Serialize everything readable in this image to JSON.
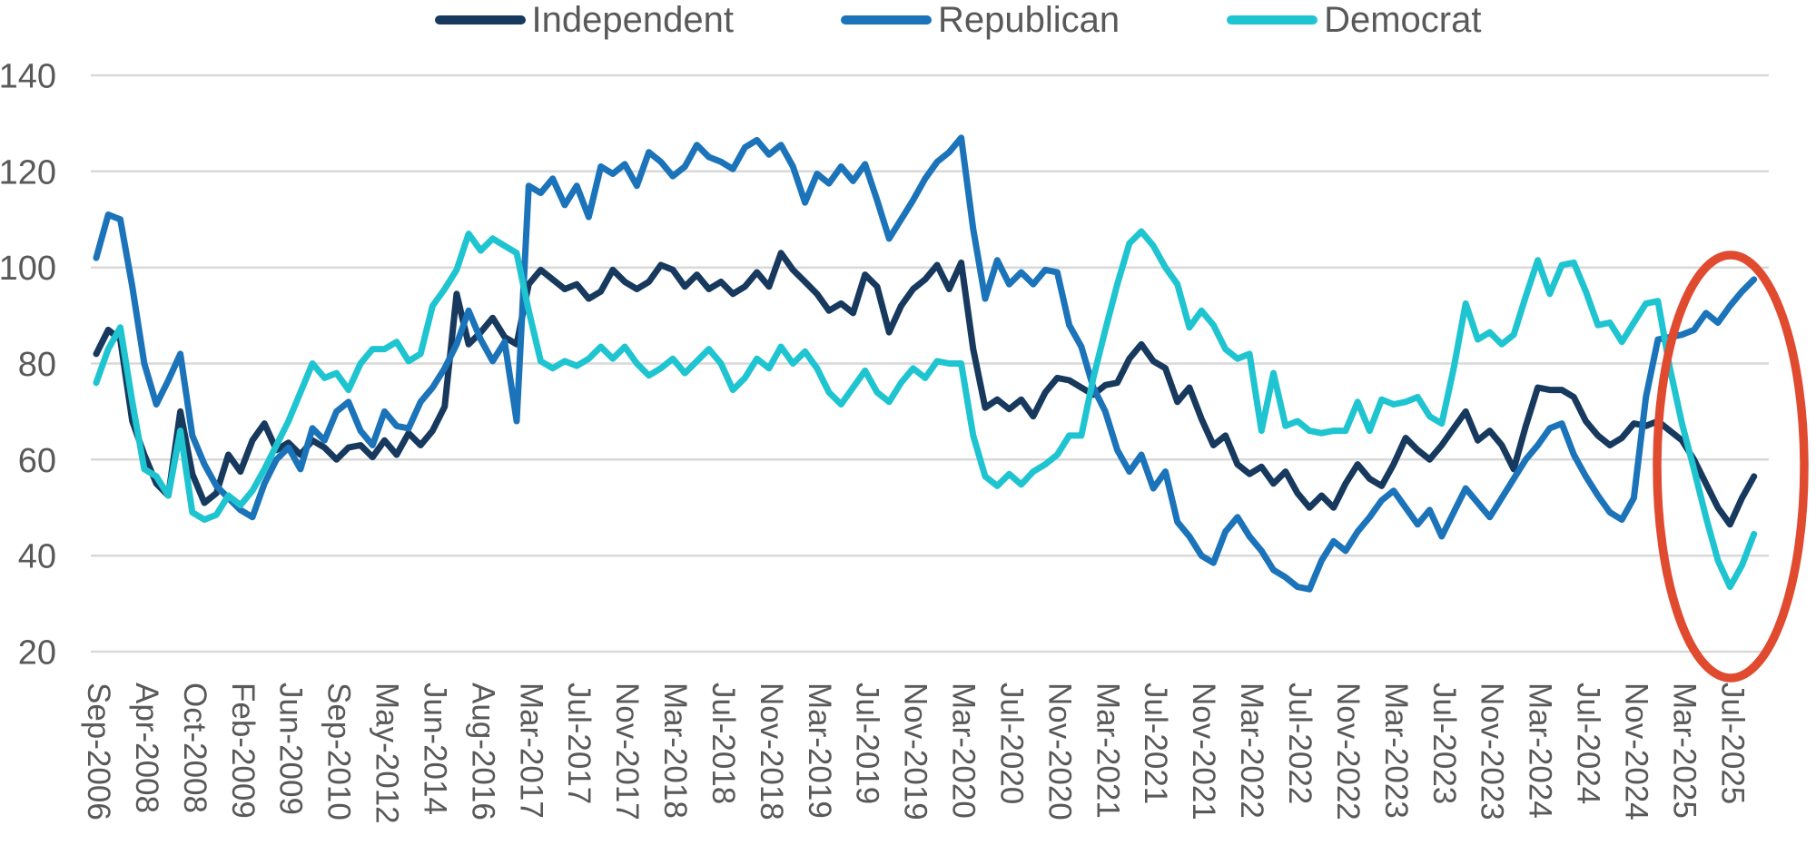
{
  "chart_data": {
    "type": "line",
    "title": "",
    "xlabel": "",
    "ylabel": "",
    "ylim": [
      20,
      140
    ],
    "y_ticks": [
      20,
      40,
      60,
      80,
      100,
      120,
      140
    ],
    "grid": "horizontal",
    "legend_position": "top",
    "n_points": 139,
    "points_per_label_gap": 4,
    "x_labels": [
      "Sep-2006",
      "Apr-2008",
      "Oct-2008",
      "Feb-2009",
      "Jun-2009",
      "Sep-2010",
      "May-2012",
      "Jun-2014",
      "Aug-2016",
      "Mar-2017",
      "Jul-2017",
      "Nov-2017",
      "Mar-2018",
      "Jul-2018",
      "Nov-2018",
      "Mar-2019",
      "Jul-2019",
      "Nov-2019",
      "Mar-2020",
      "Jul-2020",
      "Nov-2020",
      "Mar-2021",
      "Jul-2021",
      "Nov-2021",
      "Mar-2022",
      "Jul-2022",
      "Nov-2022",
      "Mar-2023",
      "Jul-2023",
      "Nov-2023",
      "Mar-2024",
      "Jul-2024",
      "Nov-2024",
      "Mar-2025",
      "Jul-2025"
    ],
    "series": [
      {
        "name": "Independent",
        "color": "#17395E",
        "values": [
          82,
          87,
          85,
          68,
          61,
          55,
          52.5,
          70,
          57,
          51,
          53,
          61,
          57.5,
          64,
          67.5,
          62,
          63.5,
          61,
          64,
          62.5,
          60,
          62.5,
          63,
          60.5,
          64,
          61,
          65.5,
          63,
          66,
          71,
          94.5,
          84,
          86.5,
          89.5,
          85.5,
          84,
          96.5,
          99.5,
          97.5,
          95.5,
          96.5,
          93.5,
          95,
          99.5,
          97,
          95.5,
          97,
          100.5,
          99.5,
          96,
          98.5,
          95.5,
          97,
          94.5,
          96,
          99,
          96,
          103,
          99.5,
          97,
          94.5,
          91,
          92.5,
          90.5,
          98.5,
          96,
          86.5,
          92,
          95.5,
          97.5,
          100.5,
          95.5,
          101,
          83,
          70.8,
          72.5,
          70.5,
          72.5,
          69,
          74,
          77,
          76.5,
          75,
          73.5,
          75.5,
          76,
          81,
          84,
          80.5,
          79,
          72,
          75,
          68.5,
          63,
          65,
          59,
          57,
          58.5,
          55,
          57.5,
          53,
          50,
          52.5,
          50,
          55,
          59,
          56,
          54.5,
          59,
          64.5,
          62,
          60,
          63,
          66.5,
          70,
          64,
          66,
          63,
          58,
          67,
          75,
          74.5,
          74.5,
          73,
          68,
          65,
          63,
          64.5,
          67.5,
          67,
          68,
          66,
          64,
          60,
          55,
          50,
          46.5,
          52,
          56.5
        ]
      },
      {
        "name": "Republican",
        "color": "#1B73B9",
        "values": [
          102,
          111,
          110,
          96,
          80,
          71.5,
          76.5,
          82,
          65,
          59,
          54.5,
          52,
          49.5,
          48,
          55,
          60,
          62.5,
          58,
          66.5,
          64,
          70,
          72,
          66,
          63,
          70,
          67,
          66.5,
          72,
          75,
          79,
          84,
          91,
          85,
          80.5,
          84.5,
          68,
          117,
          115.5,
          118.5,
          113,
          117,
          110.5,
          121,
          119.5,
          121.5,
          117,
          124,
          122,
          119,
          121,
          125.5,
          123,
          122,
          120.5,
          125,
          126.5,
          123.5,
          125.5,
          121,
          113.5,
          119.5,
          117.5,
          121,
          118,
          121.5,
          114,
          106,
          110,
          114,
          118.5,
          122,
          124,
          127,
          108,
          93.5,
          101.5,
          96.5,
          99,
          96.5,
          99.5,
          99,
          88,
          83.5,
          75,
          70,
          62,
          57.5,
          61,
          54,
          57.5,
          47,
          44,
          40,
          38.5,
          45,
          48,
          44,
          41,
          37,
          35.5,
          33.5,
          33,
          39,
          43,
          41,
          45,
          48,
          51.5,
          53.5,
          50,
          46.5,
          49.5,
          44,
          49,
          54,
          51,
          48,
          52,
          56,
          60,
          63,
          66.5,
          67.5,
          61,
          56.5,
          52.5,
          49,
          47.5,
          52,
          73,
          85,
          85.5,
          86,
          87,
          90.5,
          88.5,
          92,
          95,
          97.5
        ]
      },
      {
        "name": "Democrat",
        "color": "#1FC4D1",
        "values": [
          76,
          83,
          87.5,
          72,
          58,
          56.5,
          52.5,
          66,
          49,
          47.5,
          48.5,
          52.5,
          50.5,
          53.5,
          58,
          63,
          68,
          74,
          80,
          77,
          78,
          74.5,
          80,
          83,
          83,
          84.5,
          80.5,
          82,
          92,
          95.5,
          99.5,
          107,
          103.5,
          106,
          104.5,
          103,
          91,
          80.5,
          79,
          80.5,
          79.5,
          81,
          83.5,
          81,
          83.5,
          80,
          77.5,
          79,
          81,
          78,
          80.5,
          83,
          80,
          74.5,
          77,
          81,
          79,
          83.5,
          80,
          82.5,
          79,
          74,
          71.5,
          75,
          78.5,
          74,
          72,
          76,
          79,
          77,
          80.5,
          80,
          80,
          65,
          56.5,
          54.5,
          57,
          54.8,
          57.5,
          59,
          61,
          65,
          65,
          77,
          87,
          96.5,
          105,
          107.5,
          104.5,
          100,
          96.5,
          87.5,
          91,
          88,
          83,
          81,
          82,
          66,
          78,
          67,
          68,
          66,
          65.5,
          66,
          66,
          72,
          66,
          72.5,
          71.5,
          72,
          73,
          69,
          67.5,
          79,
          92.5,
          85,
          86.5,
          84,
          86,
          94,
          101.5,
          94.5,
          100.5,
          101,
          95,
          88,
          88.5,
          84.5,
          88.5,
          92.5,
          93,
          79,
          67.5,
          58,
          48,
          39,
          33.5,
          38,
          44.5
        ]
      }
    ],
    "annotation": {
      "shape": "ellipse",
      "color": "#E04A2F",
      "region_labels": [
        "Mar-2025",
        "Jul-2025"
      ]
    }
  },
  "colors": {
    "background": "#FFFFFF",
    "gridline": "#D9D9D9",
    "axis_text": "#595959"
  }
}
